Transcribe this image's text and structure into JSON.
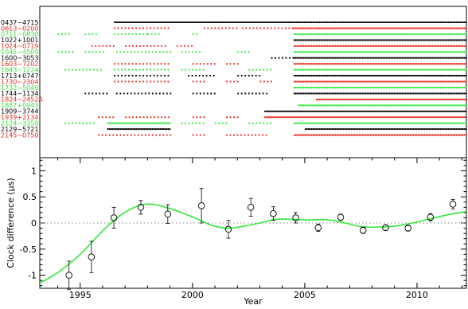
{
  "colors": {
    "black": "#000000",
    "red": "#e8281e",
    "green": "#33e83a",
    "fit_line": "#33e83a",
    "zero_line": "#888888"
  },
  "chart_data": [
    {
      "type": "scatter",
      "panel": "top",
      "description_of_marks": "observation epochs per pulsar (dots)",
      "x_range": [
        1993.2,
        2012.2
      ],
      "pulsars": [
        {
          "name": "0437−4715",
          "color": "black",
          "spans": [
            [
              1996.5,
              2001.0
            ],
            [
              2001.0,
              2005.0
            ],
            [
              2005.0,
              2012.2
            ]
          ]
        },
        {
          "name": "0613−0200",
          "color": "red",
          "spans": [
            [
              1996.5,
              1999.0
            ],
            [
              2000.5,
              2002.0
            ],
            [
              2002.2,
              2004.5
            ],
            [
              2004.5,
              2012.2
            ]
          ]
        },
        {
          "name": "0711−6830",
          "color": "green",
          "spans": [
            [
              1994.0,
              1994.5
            ],
            [
              1995.2,
              1995.7
            ],
            [
              1996.5,
              1998.0
            ],
            [
              1998.0,
              1998.5
            ],
            [
              2000.0,
              2000.3
            ],
            [
              2004.5,
              2012.2
            ]
          ]
        },
        {
          "name": "1022+1001",
          "color": "black",
          "spans": [
            [
              2004.5,
              2012.2
            ]
          ]
        },
        {
          "name": "1024−0719",
          "color": "red",
          "spans": [
            [
              1995.5,
              1996.5
            ],
            [
              1997.0,
              1998.8
            ],
            [
              1999.3,
              2000.0
            ],
            [
              2004.5,
              2012.2
            ]
          ]
        },
        {
          "name": "1045−4509",
          "color": "green",
          "spans": [
            [
              1994.0,
              1994.7
            ],
            [
              1995.2,
              1996.0
            ],
            [
              1996.6,
              1999.0
            ],
            [
              1999.5,
              2000.3
            ],
            [
              2002.0,
              2002.5
            ],
            [
              2004.5,
              2012.2
            ]
          ]
        },
        {
          "name": "1600−3053",
          "color": "black",
          "spans": [
            [
              2003.5,
              2004.5
            ],
            [
              2004.5,
              2012.2
            ]
          ]
        },
        {
          "name": "1603−7202",
          "color": "red",
          "spans": [
            [
              1996.5,
              1999.0
            ],
            [
              2000.0,
              2001.0
            ],
            [
              2001.5,
              2002.0
            ],
            [
              2004.5,
              2012.2
            ]
          ]
        },
        {
          "name": "1643−1224",
          "color": "green",
          "spans": [
            [
              1994.3,
              1996.0
            ],
            [
              1996.5,
              1999.0
            ],
            [
              1999.5,
              2000.5
            ],
            [
              2002.5,
              2003.5
            ],
            [
              2004.5,
              2012.2
            ]
          ]
        },
        {
          "name": "1713+0747",
          "color": "black",
          "spans": [
            [
              1996.5,
              1999.0
            ],
            [
              1999.8,
              2001.0
            ],
            [
              2002.0,
              2003.0
            ],
            [
              2004.5,
              2012.2
            ]
          ]
        },
        {
          "name": "1730−2304",
          "color": "red",
          "spans": [
            [
              1996.5,
              1999.0
            ],
            [
              2000.0,
              2000.6
            ],
            [
              2001.5,
              2002.0
            ],
            [
              2003.0,
              2003.5
            ],
            [
              2004.5,
              2012.2
            ]
          ]
        },
        {
          "name": "1732−5049",
          "color": "green",
          "spans": [
            [
              2004.5,
              2012.2
            ]
          ]
        },
        {
          "name": "1744−1134",
          "color": "black",
          "spans": [
            [
              1995.2,
              1996.2
            ],
            [
              1996.6,
              1999.0
            ],
            [
              2000.0,
              2001.0
            ],
            [
              2002.0,
              2003.3
            ],
            [
              2004.5,
              2012.2
            ]
          ]
        },
        {
          "name": "1824−2452A",
          "color": "red",
          "spans": [
            [
              2005.5,
              2012.2
            ]
          ]
        },
        {
          "name": "1857+0943",
          "color": "green",
          "spans": [
            [
              2004.7,
              2012.2
            ]
          ]
        },
        {
          "name": "1909−3744",
          "color": "black",
          "spans": [
            [
              2003.2,
              2012.2
            ]
          ]
        },
        {
          "name": "1939+2134",
          "color": "red",
          "spans": [
            [
              1995.8,
              1996.5
            ],
            [
              1997.0,
              1999.0
            ],
            [
              2000.0,
              2000.6
            ],
            [
              2001.5,
              2002.0
            ],
            [
              2003.2,
              2012.2
            ]
          ]
        },
        {
          "name": "2124−3358",
          "color": "green",
          "spans": [
            [
              1994.3,
              1995.6
            ],
            [
              1996.2,
              1999.0
            ],
            [
              1999.5,
              2000.5
            ],
            [
              2001.0,
              2001.5
            ],
            [
              2002.5,
              2003.5
            ],
            [
              2004.5,
              2012.2
            ]
          ]
        },
        {
          "name": "2129−5721",
          "color": "black",
          "spans": [
            [
              1996.2,
              1999.0
            ],
            [
              2005.0,
              2012.2
            ]
          ]
        },
        {
          "name": "2145−0750",
          "color": "red",
          "spans": [
            [
              1995.8,
              1996.5
            ],
            [
              1996.6,
              1999.0
            ],
            [
              2000.0,
              2000.6
            ],
            [
              2001.5,
              2003.3
            ],
            [
              2004.5,
              2012.2
            ]
          ]
        }
      ]
    },
    {
      "type": "line",
      "panel": "bottom",
      "xlabel": "Year",
      "ylabel": "Clock difference (μs)",
      "xlim": [
        1993.2,
        2012.2
      ],
      "ylim": [
        -1.25,
        1.25
      ],
      "x_ticks": [
        1995,
        2000,
        2005,
        2010
      ],
      "y_ticks": [
        -1,
        -0.5,
        0,
        0.5,
        1
      ],
      "zero_line": true,
      "points": [
        {
          "x": 1994.5,
          "y": -1.0,
          "err": 0.27
        },
        {
          "x": 1995.5,
          "y": -0.65,
          "err": 0.3
        },
        {
          "x": 1996.5,
          "y": 0.1,
          "err": 0.2
        },
        {
          "x": 1997.7,
          "y": 0.3,
          "err": 0.13
        },
        {
          "x": 1998.9,
          "y": 0.17,
          "err": 0.18
        },
        {
          "x": 2000.4,
          "y": 0.33,
          "err": 0.33
        },
        {
          "x": 2001.6,
          "y": -0.12,
          "err": 0.17
        },
        {
          "x": 2002.6,
          "y": 0.3,
          "err": 0.17
        },
        {
          "x": 2003.6,
          "y": 0.18,
          "err": 0.13
        },
        {
          "x": 2004.6,
          "y": 0.1,
          "err": 0.1
        },
        {
          "x": 2005.6,
          "y": -0.09,
          "err": 0.07
        },
        {
          "x": 2006.6,
          "y": 0.11,
          "err": 0.06
        },
        {
          "x": 2007.6,
          "y": -0.14,
          "err": 0.06
        },
        {
          "x": 2008.6,
          "y": -0.09,
          "err": 0.05
        },
        {
          "x": 2009.6,
          "y": -0.1,
          "err": 0.05
        },
        {
          "x": 2010.6,
          "y": 0.11,
          "err": 0.07
        },
        {
          "x": 2011.6,
          "y": 0.36,
          "err": 0.09
        }
      ],
      "model_curve": {
        "x": [
          1993.2,
          1994.0,
          1995.0,
          1996.0,
          1996.8,
          1997.6,
          1998.2,
          1998.8,
          1999.5,
          2000.2,
          2000.9,
          2001.6,
          2002.3,
          2003.0,
          2003.7,
          2004.4,
          2005.2,
          2006.0,
          2006.8,
          2007.5,
          2008.2,
          2009.0,
          2009.8,
          2010.6,
          2011.3,
          2012.2
        ],
        "y": [
          -1.15,
          -0.95,
          -0.6,
          -0.15,
          0.15,
          0.33,
          0.36,
          0.3,
          0.2,
          0.08,
          -0.05,
          -0.1,
          -0.06,
          0.0,
          0.07,
          0.07,
          0.06,
          0.06,
          0.0,
          -0.07,
          -0.08,
          -0.06,
          0.0,
          0.08,
          0.15,
          0.22
        ]
      }
    }
  ]
}
